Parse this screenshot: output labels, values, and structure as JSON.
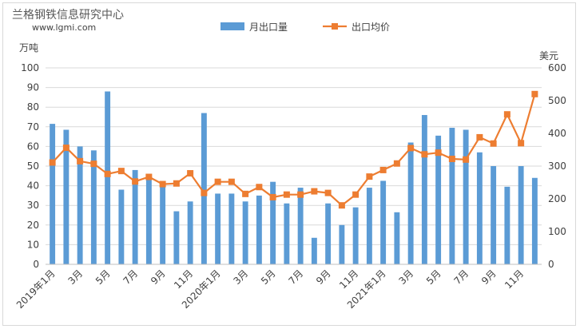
{
  "watermark": {
    "company": "兰格钢铁信息研究中心",
    "url": "www.lgmi.com"
  },
  "chart_data": {
    "type": "bar",
    "y_left_label": "万吨",
    "y_right_label": "美元",
    "y_left_lim": [
      0,
      100
    ],
    "y_right_lim": [
      0,
      600
    ],
    "y_left_ticks": [
      0,
      10,
      20,
      30,
      40,
      50,
      60,
      70,
      80,
      90,
      100
    ],
    "y_right_ticks": [
      0,
      100,
      200,
      300,
      400,
      500,
      600
    ],
    "legend_position": "top-center",
    "categories": [
      "2019-01",
      "2019-02",
      "2019-03",
      "2019-04",
      "2019-05",
      "2019-06",
      "2019-07",
      "2019-08",
      "2019-09",
      "2019-10",
      "2019-11",
      "2019-12",
      "2020-01",
      "2020-02",
      "2020-03",
      "2020-04",
      "2020-05",
      "2020-06",
      "2020-07",
      "2020-08",
      "2020-09",
      "2020-10",
      "2020-11",
      "2020-12",
      "2021-01",
      "2021-02",
      "2021-03",
      "2021-04",
      "2021-05",
      "2021-06",
      "2021-07",
      "2021-08",
      "2021-09",
      "2021-10",
      "2021-11",
      "2021-12"
    ],
    "tick_labels": [
      {
        "index": 0,
        "text": "2019年1月"
      },
      {
        "index": 2,
        "text": "3月"
      },
      {
        "index": 4,
        "text": "5月"
      },
      {
        "index": 6,
        "text": "7月"
      },
      {
        "index": 8,
        "text": "9月"
      },
      {
        "index": 10,
        "text": "11月"
      },
      {
        "index": 12,
        "text": "2020年1月"
      },
      {
        "index": 14,
        "text": "3月"
      },
      {
        "index": 16,
        "text": "5月"
      },
      {
        "index": 18,
        "text": "7月"
      },
      {
        "index": 20,
        "text": "9月"
      },
      {
        "index": 22,
        "text": "11月"
      },
      {
        "index": 24,
        "text": "2021年1月"
      },
      {
        "index": 26,
        "text": "3月"
      },
      {
        "index": 28,
        "text": "5月"
      },
      {
        "index": 30,
        "text": "7月"
      },
      {
        "index": 32,
        "text": "9月"
      },
      {
        "index": 34,
        "text": "11月"
      }
    ],
    "series": [
      {
        "name": "月出口量",
        "type": "bar",
        "axis": "left",
        "color": "#5b9bd5",
        "values": [
          71.5,
          68.5,
          60,
          58,
          88,
          38,
          48,
          43,
          41,
          27,
          32,
          77,
          36,
          36,
          32,
          35,
          42,
          31,
          39,
          13.5,
          31,
          20,
          29,
          39,
          42.5,
          26.5,
          62,
          76,
          65.5,
          69.5,
          68.5,
          57,
          50,
          39.5,
          50,
          44
        ]
      },
      {
        "name": "出口均价",
        "type": "line",
        "axis": "right",
        "color": "#ed7d31",
        "values": [
          311,
          356,
          315,
          307,
          276,
          285,
          253,
          267,
          245,
          247,
          278,
          218,
          252,
          252,
          215,
          236,
          205,
          213,
          213,
          223,
          218,
          180,
          213,
          268,
          288,
          308,
          355,
          336,
          341,
          322,
          320,
          388,
          369,
          458,
          370,
          520
        ]
      }
    ]
  }
}
